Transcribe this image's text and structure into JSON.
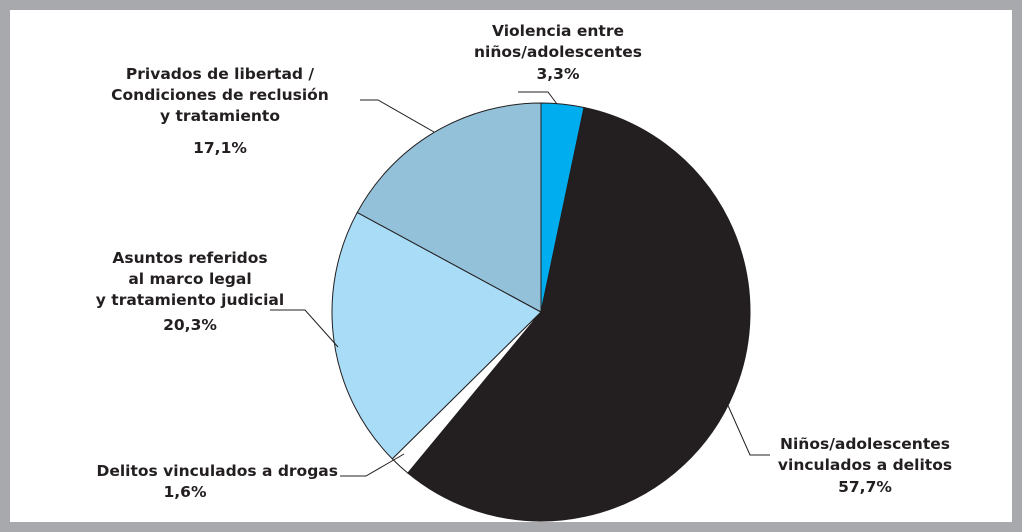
{
  "chart_data": {
    "type": "pie",
    "start_angle_deg": 0,
    "direction": "clockwise",
    "slices": [
      {
        "lines": [
          "Violencia entre",
          "niños/adolescentes"
        ],
        "value_label": "3,3%",
        "value": 3.3,
        "color": "#00aeef"
      },
      {
        "lines": [
          "Niños/adolescentes",
          "vinculados a delitos"
        ],
        "value_label": "57,7%",
        "value": 57.7,
        "color": "#231f20"
      },
      {
        "lines": [
          "Delitos vinculados a drogas"
        ],
        "value_label": "1,6%",
        "value": 1.6,
        "color": "#ffffff"
      },
      {
        "lines": [
          "Asuntos referidos",
          "al marco legal",
          "y tratamiento judicial"
        ],
        "value_label": "20,3%",
        "value": 20.3,
        "color": "#a9dcf7"
      },
      {
        "lines": [
          "Privados de libertad /",
          "Condiciones de reclusión",
          "y tratamiento"
        ],
        "value_label": "17,1%",
        "value": 17.1,
        "color": "#93c1d9"
      }
    ]
  }
}
